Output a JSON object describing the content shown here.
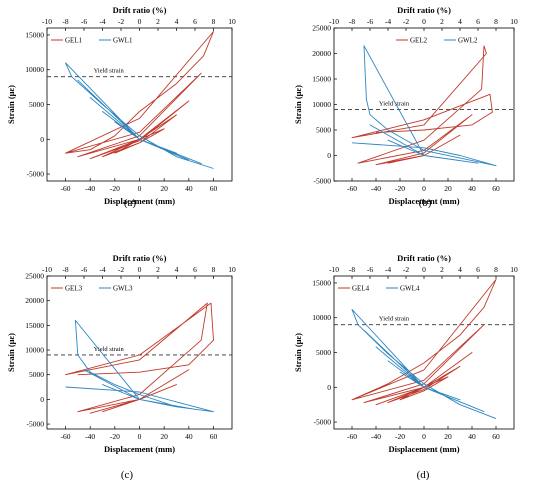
{
  "panels": [
    {
      "label": "(a)",
      "chart_data": {
        "type": "line",
        "title": "",
        "xlabel": "Displacement (mm)",
        "ylabel": "Strain (με)",
        "secondary_xlabel": "Drift ratio (%)",
        "xlim": [
          -75,
          75
        ],
        "ylim": [
          -6000,
          16000
        ],
        "xticks": [
          -60,
          -40,
          -20,
          0,
          20,
          40,
          60
        ],
        "yticks": [
          -5000,
          0,
          5000,
          10000,
          15000
        ],
        "top_xticks": [
          -10,
          -8,
          -6,
          -4,
          -2,
          0,
          2,
          4,
          6,
          8,
          10
        ],
        "yield_strain": 9000,
        "yield_label": "Yield strain",
        "legend_position": "top-left",
        "grid": false,
        "series": [
          {
            "name": "GEL1",
            "color": "#c0392b",
            "x": [
              0,
              -20,
              0,
              20,
              0,
              -30,
              0,
              30,
              0,
              -40,
              0,
              40,
              0,
              -50,
              0,
              50,
              0,
              -60,
              0,
              60,
              52,
              30,
              0,
              -20,
              -40,
              -60
            ],
            "y": [
              0,
              -2000,
              -500,
              1500,
              0,
              -2500,
              -500,
              3500,
              0,
              -2800,
              -200,
              5500,
              0,
              -2500,
              500,
              9500,
              1000,
              -2000,
              3000,
              15500,
              12000,
              8000,
              4000,
              500,
              -1500,
              -2000
            ]
          },
          {
            "name": "GWL1",
            "color": "#2e86c1",
            "x": [
              0,
              -20,
              0,
              20,
              0,
              -30,
              0,
              30,
              0,
              -40,
              0,
              40,
              0,
              -50,
              0,
              50,
              0,
              -60,
              -55,
              -30,
              0,
              30,
              60
            ],
            "y": [
              0,
              2500,
              0,
              -1500,
              0,
              4000,
              0,
              -2000,
              0,
              6000,
              0,
              -3000,
              0,
              8500,
              0,
              -3500,
              0,
              11000,
              9000,
              5000,
              500,
              -2500,
              -4200
            ]
          }
        ]
      }
    },
    {
      "label": "(b)",
      "chart_data": {
        "type": "line",
        "title": "",
        "xlabel": "Displacement (mm)",
        "ylabel": "Strain (με)",
        "secondary_xlabel": "Drift ratio (%)",
        "xlim": [
          -75,
          75
        ],
        "ylim": [
          -5000,
          25000
        ],
        "xticks": [
          -60,
          -40,
          -20,
          0,
          20,
          40,
          60
        ],
        "yticks": [
          -5000,
          0,
          5000,
          10000,
          15000,
          20000,
          25000
        ],
        "top_xticks": [
          -10,
          -8,
          -6,
          -4,
          -2,
          0,
          2,
          4,
          6,
          8,
          10
        ],
        "yield_strain": 9000,
        "yield_label": "Yield strain",
        "legend_position": "top-right",
        "grid": false,
        "series": [
          {
            "name": "GEL2",
            "color": "#c0392b",
            "x": [
              0,
              -30,
              0,
              30,
              0,
              -40,
              0,
              40,
              0,
              -55,
              0,
              48,
              50,
              52,
              0,
              -60,
              0,
              55,
              57,
              40,
              0,
              -40
            ],
            "y": [
              0,
              -1500,
              0,
              4000,
              0,
              -1800,
              500,
              8000,
              1000,
              -1500,
              3000,
              13000,
              21500,
              20000,
              6000,
              3500,
              7000,
              12000,
              8500,
              6000,
              5000,
              4500
            ]
          },
          {
            "name": "GWL2",
            "color": "#2e86c1",
            "x": [
              0,
              -30,
              0,
              30,
              0,
              -45,
              0,
              45,
              0,
              -50,
              -49,
              -48,
              -45,
              -30,
              0,
              40,
              60,
              30,
              0,
              -60
            ],
            "y": [
              0,
              3000,
              0,
              -1000,
              0,
              6000,
              0,
              -1500,
              0,
              21500,
              16000,
              11000,
              8000,
              5000,
              1000,
              -1000,
              -2000,
              0,
              1500,
              2500
            ]
          }
        ]
      }
    },
    {
      "label": "(c)",
      "chart_data": {
        "type": "line",
        "title": "",
        "xlabel": "Displacement (mm)",
        "ylabel": "Strain (με)",
        "secondary_xlabel": "Drift ratio (%)",
        "xlim": [
          -75,
          75
        ],
        "ylim": [
          -6000,
          25000
        ],
        "xticks": [
          -60,
          -40,
          -20,
          0,
          20,
          40,
          60
        ],
        "yticks": [
          -5000,
          0,
          5000,
          10000,
          15000,
          20000,
          25000
        ],
        "top_xticks": [
          -10,
          -8,
          -6,
          -4,
          -2,
          0,
          2,
          4,
          6,
          8,
          10
        ],
        "yield_strain": 9000,
        "yield_label": "Yield strain",
        "legend_position": "top-left",
        "grid": false,
        "series": [
          {
            "name": "GEL3",
            "color": "#c0392b",
            "x": [
              0,
              -30,
              0,
              30,
              0,
              -40,
              0,
              40,
              0,
              -50,
              0,
              50,
              55,
              0,
              -60,
              0,
              58,
              60,
              40,
              0,
              -50
            ],
            "y": [
              0,
              -2500,
              0,
              3000,
              0,
              -2800,
              0,
              6000,
              0,
              -2500,
              1000,
              12000,
              19500,
              8000,
              5000,
              9000,
              19500,
              12000,
              7000,
              5500,
              5000
            ]
          },
          {
            "name": "GWL3",
            "color": "#2e86c1",
            "x": [
              0,
              -30,
              0,
              30,
              0,
              -45,
              0,
              45,
              0,
              -52,
              -50,
              -40,
              -20,
              0,
              30,
              60,
              30,
              0,
              -60
            ],
            "y": [
              0,
              3000,
              0,
              -1500,
              0,
              6000,
              0,
              -2000,
              0,
              16000,
              9000,
              5500,
              3000,
              1000,
              -1500,
              -2500,
              -500,
              1500,
              2500
            ]
          }
        ]
      }
    },
    {
      "label": "(d)",
      "chart_data": {
        "type": "line",
        "title": "",
        "xlabel": "Displacement (mm)",
        "ylabel": "Strain (με)",
        "secondary_xlabel": "Drift ratio (%)",
        "xlim": [
          -75,
          75
        ],
        "ylim": [
          -6000,
          16000
        ],
        "xticks": [
          -60,
          -40,
          -20,
          0,
          20,
          40,
          60
        ],
        "yticks": [
          -5000,
          0,
          5000,
          10000,
          15000
        ],
        "top_xticks": [
          -10,
          -8,
          -6,
          -4,
          -2,
          0,
          2,
          4,
          6,
          8,
          10
        ],
        "yield_strain": 9000,
        "yield_label": "Yield strain",
        "legend_position": "top-left",
        "grid": false,
        "series": [
          {
            "name": "GEL4",
            "color": "#c0392b",
            "x": [
              0,
              -20,
              0,
              20,
              0,
              -30,
              0,
              30,
              0,
              -40,
              0,
              40,
              0,
              -50,
              0,
              50,
              0,
              -60,
              0,
              60,
              50,
              30,
              0,
              -30,
              -60
            ],
            "y": [
              0,
              -1800,
              -500,
              1500,
              0,
              -2200,
              -300,
              3000,
              0,
              -2500,
              0,
              5000,
              0,
              -2200,
              500,
              9000,
              1000,
              -1800,
              2500,
              15500,
              11500,
              7500,
              3500,
              500,
              -1800
            ]
          },
          {
            "name": "GWL4",
            "color": "#2e86c1",
            "x": [
              0,
              -20,
              0,
              20,
              0,
              -30,
              0,
              30,
              0,
              -40,
              0,
              40,
              0,
              -50,
              0,
              50,
              0,
              -60,
              -55,
              -30,
              0,
              30,
              60
            ],
            "y": [
              0,
              2200,
              0,
              -1200,
              0,
              3800,
              0,
              -1800,
              0,
              5800,
              0,
              -2800,
              0,
              8200,
              0,
              -3500,
              0,
              11200,
              9000,
              4800,
              500,
              -2500,
              -4500
            ]
          }
        ]
      }
    }
  ]
}
